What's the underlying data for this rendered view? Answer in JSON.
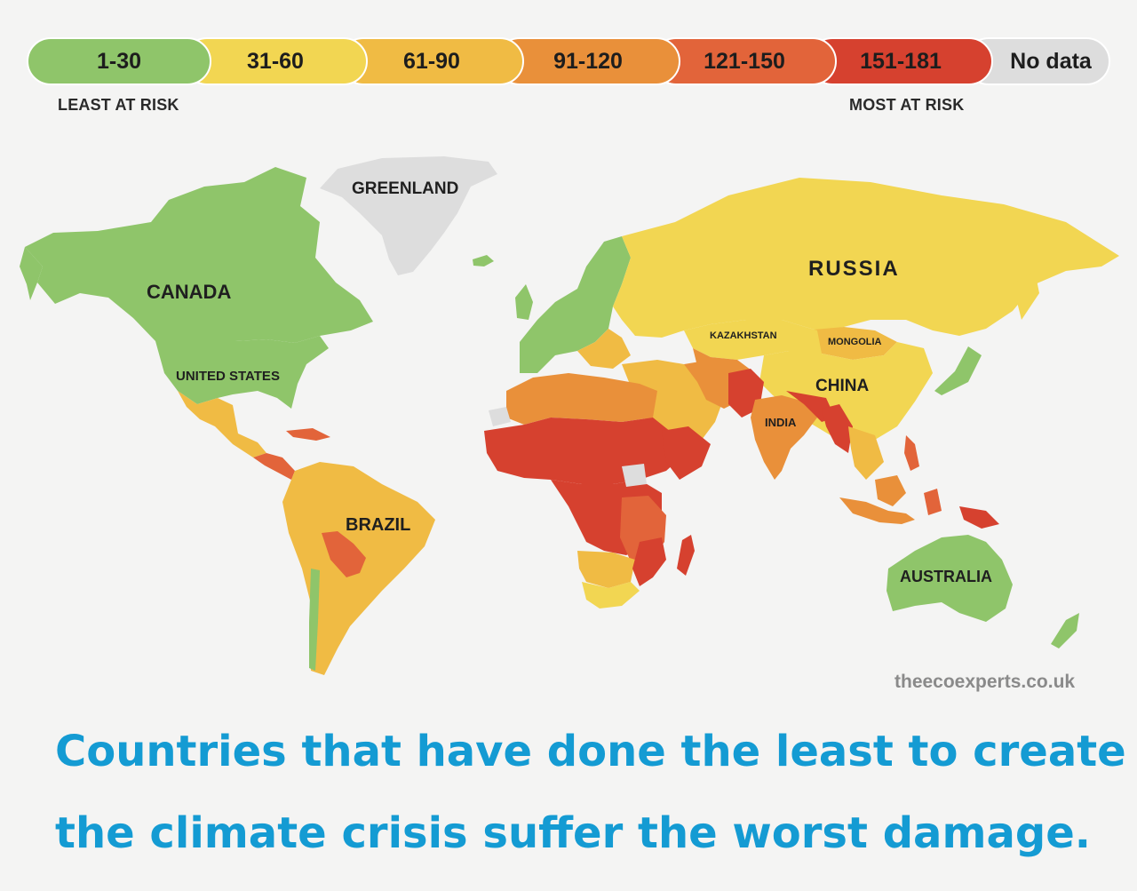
{
  "legend": {
    "segments": [
      {
        "label": "1-30",
        "color": "#8fc56a"
      },
      {
        "label": "31-60",
        "color": "#f2d652"
      },
      {
        "label": "61-90",
        "color": "#f0bb44"
      },
      {
        "label": "91-120",
        "color": "#e9903a"
      },
      {
        "label": "121-150",
        "color": "#e2643a"
      },
      {
        "label": "151-181",
        "color": "#d6412f"
      },
      {
        "label": "No data",
        "color": "#dddddd"
      }
    ],
    "least_label": "LEAST AT RISK",
    "most_label": "MOST AT RISK"
  },
  "map": {
    "ocean_color": "#f4f4f3",
    "labels": {
      "greenland": "GREENLAND",
      "canada": "CANADA",
      "united_states": "UNITED STATES",
      "russia": "RUSSIA",
      "kazakhstan": "KAZAKHSTAN",
      "mongolia": "MONGOLIA",
      "china": "CHINA",
      "india": "INDIA",
      "brazil": "BRAZIL",
      "australia": "AUSTRALIA"
    }
  },
  "credit": "theecoexperts.co.uk",
  "caption": {
    "line1": "Countries that have done the least to create",
    "line2": "the climate crisis suffer the worst damage."
  }
}
